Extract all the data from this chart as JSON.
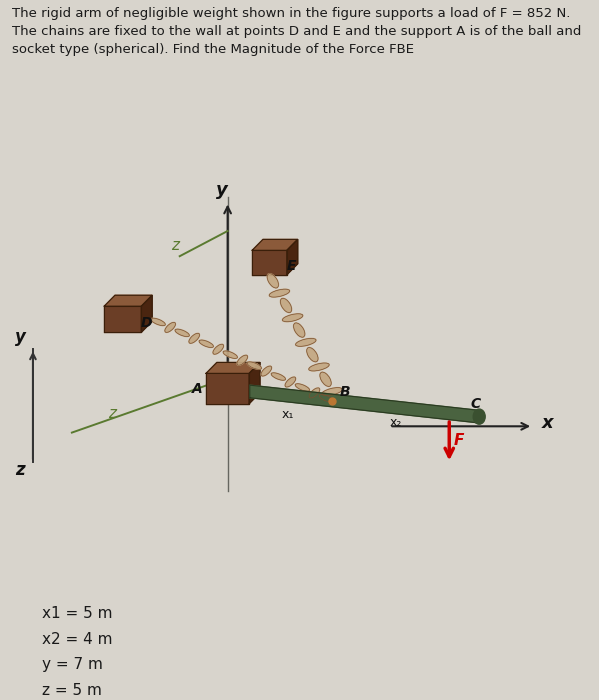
{
  "title_text": "The rigid arm of negligible weight shown in the figure supports a load of F = 852 N.\nThe chains are fixed to the wall at points D and E and the support A is of the ball and\nsocket type (spherical). Find the Magnitude of the Force FBE",
  "bg_color": "#d8d4cc",
  "text_color": "#1a1a1a",
  "params": [
    "x1 = 5 m",
    "x2 = 4 m",
    "y = 7 m",
    "z = 5 m"
  ],
  "arm_color": "#4a6340",
  "chain_color": "#c4a882",
  "axis_color": "#5a7a30",
  "force_color": "#cc0000",
  "block_front": "#6b3e26",
  "block_top": "#8b5a3a",
  "block_right": "#4a2510",
  "block_edge": "#3a1f0a"
}
